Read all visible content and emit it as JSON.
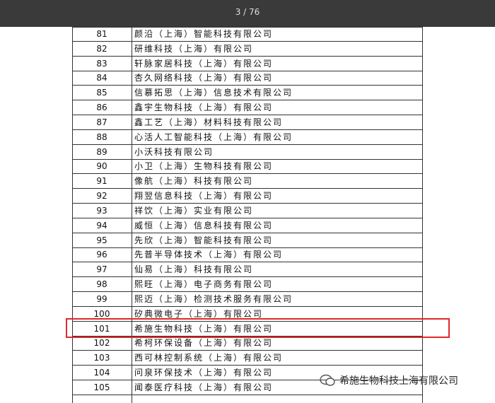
{
  "viewer": {
    "page_indicator": "3 / 76"
  },
  "table": {
    "rows": [
      [
        "81",
        "颜沿（上海）智能科技有限公司"
      ],
      [
        "82",
        "研维科技（上海）有限公司"
      ],
      [
        "83",
        "轩脉家居科技（上海）有限公司"
      ],
      [
        "84",
        "杏久网络科技（上海）有限公司"
      ],
      [
        "85",
        "信慕拓思（上海）信息技术有限公司"
      ],
      [
        "86",
        "鑫宇生物科技（上海）有限公司"
      ],
      [
        "87",
        "鑫工艺（上海）材料科技有限公司"
      ],
      [
        "88",
        "心活人工智能科技（上海）有限公司"
      ],
      [
        "89",
        "小沃科技有限公司"
      ],
      [
        "90",
        "小卫（上海）生物科技有限公司"
      ],
      [
        "91",
        "像航（上海）科技有限公司"
      ],
      [
        "92",
        "翔翌信息科技（上海）有限公司"
      ],
      [
        "93",
        "祥饮（上海）实业有限公司"
      ],
      [
        "94",
        "威恒（上海）信息科技有限公司"
      ],
      [
        "95",
        "先欣（上海）智能科技有限公司"
      ],
      [
        "96",
        "先普半导体技术（上海）有限公司"
      ],
      [
        "97",
        "仙易（上海）科技有限公司"
      ],
      [
        "98",
        "熙旺（上海）电子商务有限公司"
      ],
      [
        "99",
        "熙迈（上海）检测技术服务有限公司"
      ],
      [
        "100",
        "矽典微电子（上海）有限公司"
      ],
      [
        "101",
        "希施生物科技（上海）有限公司"
      ],
      [
        "102",
        "希柯环保设备（上海）有限公司"
      ],
      [
        "103",
        "西可林控制系统（上海）有限公司"
      ],
      [
        "104",
        "问泉环保技术（上海）有限公司"
      ],
      [
        "105",
        "闻泰医疗科技（上海）有限公司"
      ]
    ]
  },
  "watermark": "希施生物科技上海有限公司"
}
